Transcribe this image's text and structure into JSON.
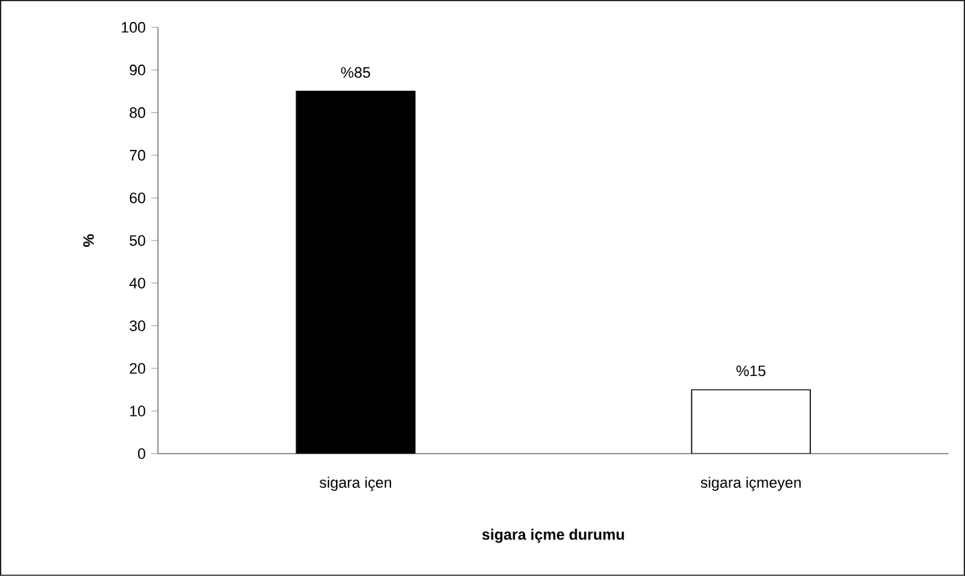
{
  "chart_data": {
    "type": "bar",
    "categories": [
      "sigara içen",
      "sigara içmeyen"
    ],
    "values": [
      85,
      15
    ],
    "colors": [
      "#000000",
      "#ffffff"
    ],
    "value_labels": [
      "%85",
      "%15"
    ],
    "xlabel": "sigara içme durumu",
    "ylabel": "%",
    "ylim": [
      0,
      100
    ],
    "yticks": [
      0,
      10,
      20,
      30,
      40,
      50,
      60,
      70,
      80,
      90,
      100
    ]
  }
}
